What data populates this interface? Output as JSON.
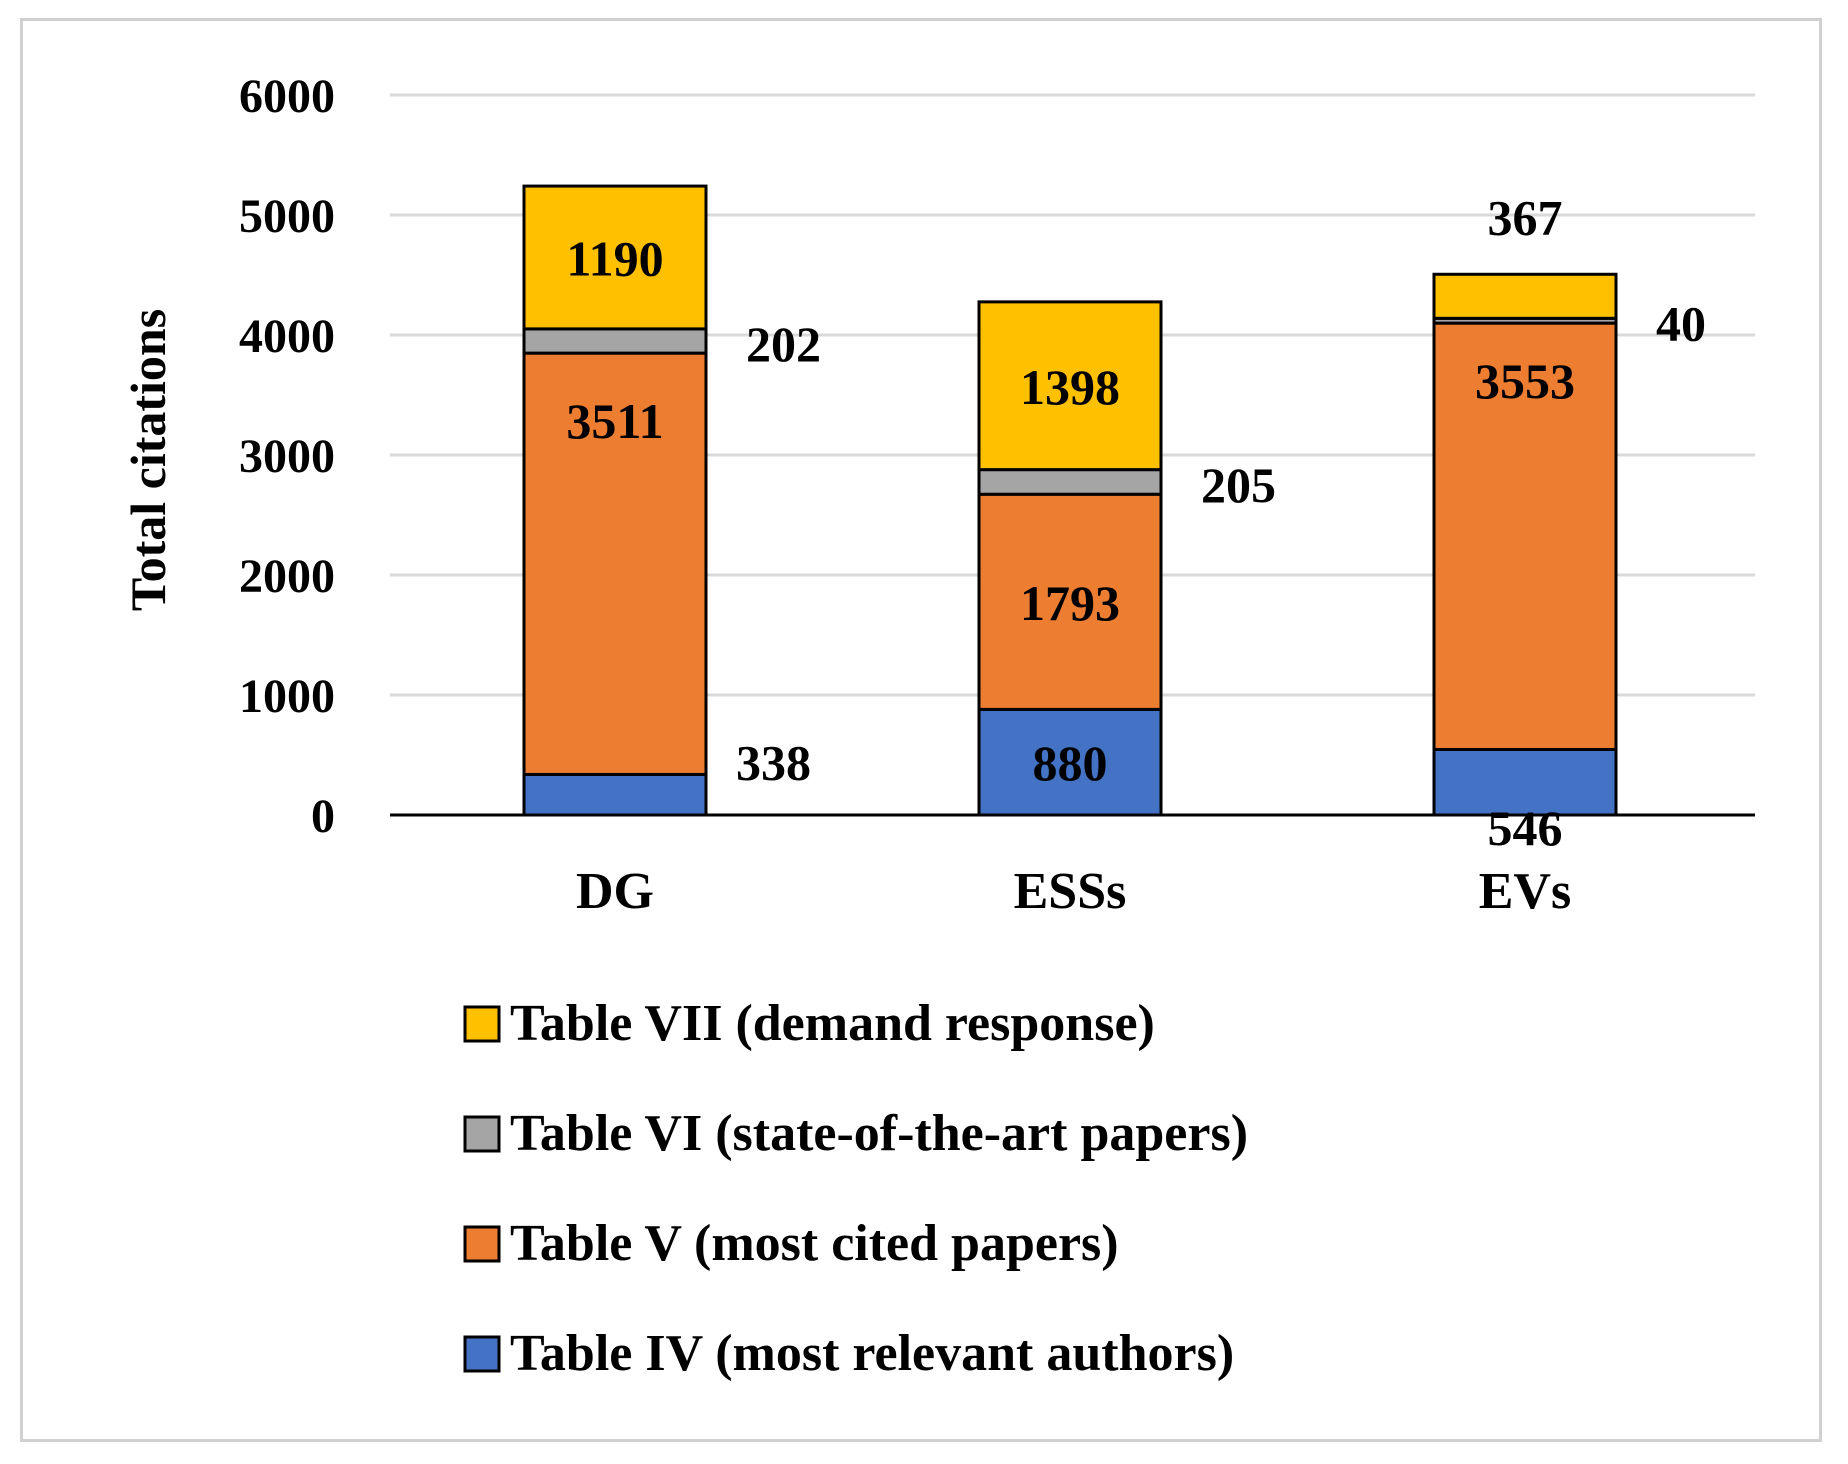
{
  "chart_data": {
    "type": "bar",
    "stacked": true,
    "title": "",
    "xlabel": "",
    "ylabel": "Total citations",
    "ylim": [
      0,
      6000
    ],
    "yticks": [
      0,
      1000,
      2000,
      3000,
      4000,
      5000,
      6000
    ],
    "grid": true,
    "legend_position": "bottom",
    "categories": [
      "DG",
      "ESSs",
      "EVs"
    ],
    "series": [
      {
        "name": "Table IV (most relevant authors)",
        "color": "#4472C4",
        "values": [
          338,
          880,
          546
        ]
      },
      {
        "name": "Table V (most cited papers)",
        "color": "#ED7D31",
        "values": [
          3511,
          1793,
          3553
        ]
      },
      {
        "name": "Table VI (state-of-the-art papers)",
        "color": "#A5A5A5",
        "values": [
          202,
          205,
          40
        ]
      },
      {
        "name": "Table VII (demand response)",
        "color": "#FFC000",
        "values": [
          1190,
          1398,
          367
        ]
      }
    ],
    "data_labels": [
      [
        "338",
        "880",
        "546"
      ],
      [
        "3511",
        "1793",
        "3553"
      ],
      [
        "202",
        "205",
        "40"
      ],
      [
        "1190",
        "1398",
        "367"
      ]
    ]
  }
}
